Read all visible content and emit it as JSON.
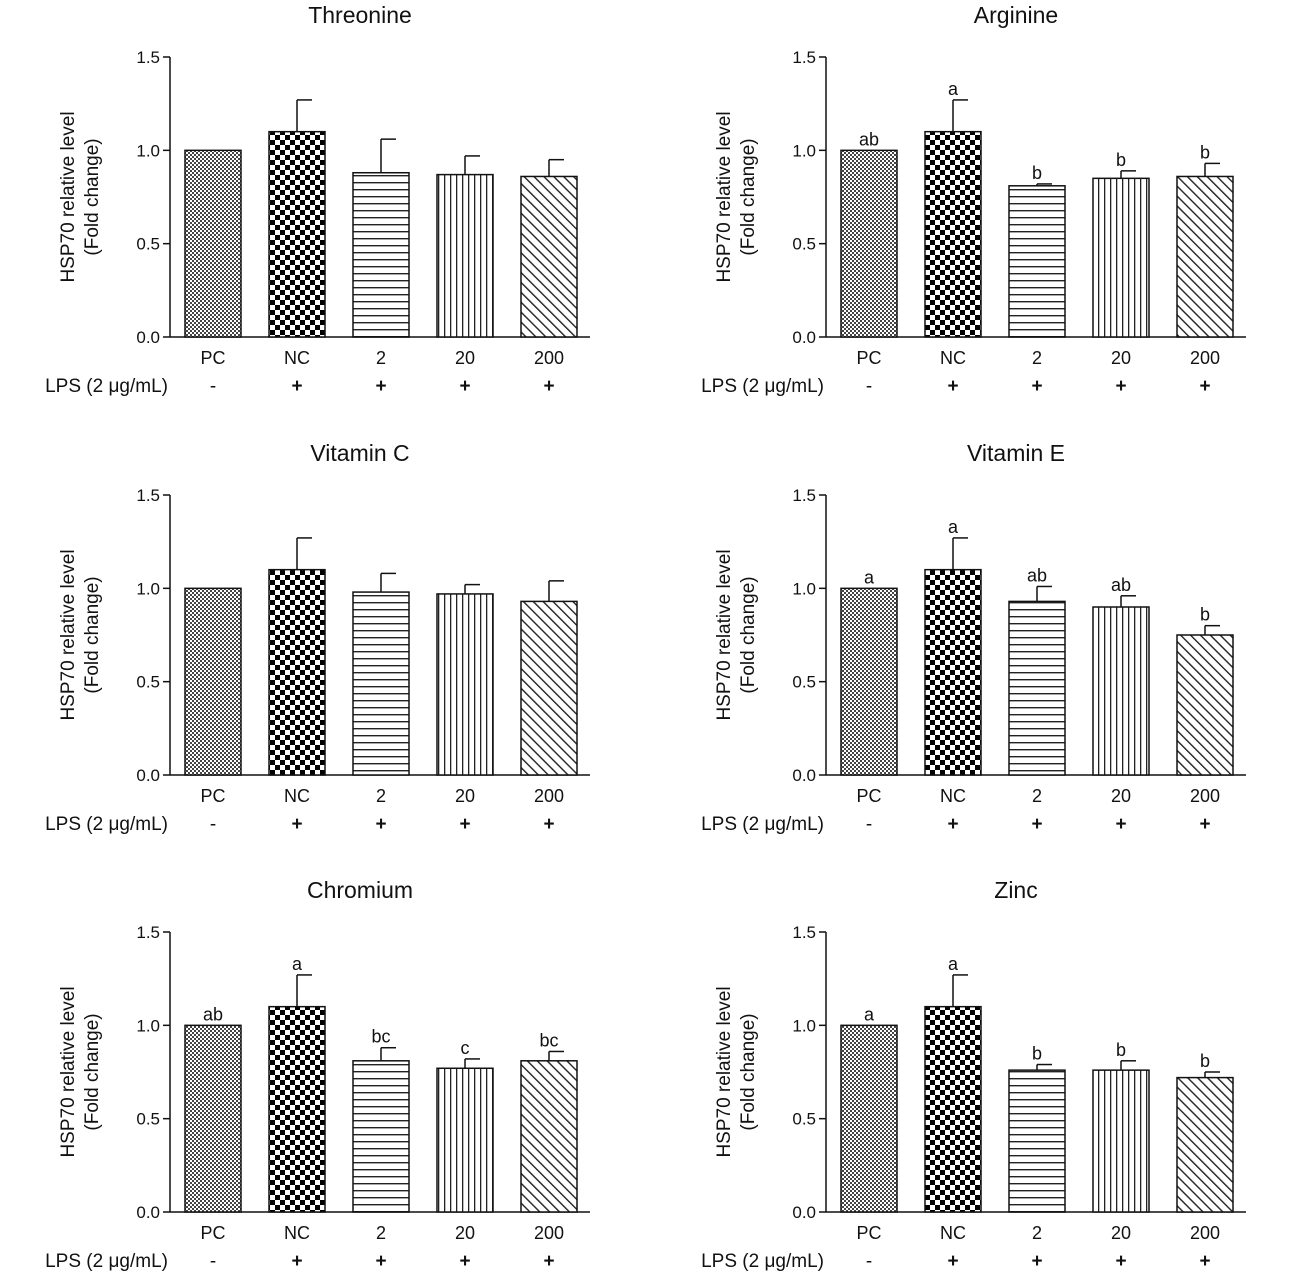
{
  "figure": {
    "categories": [
      "PC",
      "NC",
      "2",
      "20",
      "200"
    ],
    "lps_label": "LPS (2 μg/mL)",
    "lps_signs": [
      "-",
      "+",
      "+",
      "+",
      "+"
    ],
    "ylabel_line1": "HSP70 relative level",
    "ylabel_line2": "(Fold change)",
    "bar_patterns": [
      "fine-check",
      "coarse-check",
      "horizontal-lines",
      "vertical-lines",
      "diagonal-lines"
    ],
    "colors": {
      "ink": "#111111",
      "background": "#ffffff"
    }
  },
  "chart_data": [
    {
      "type": "bar",
      "title": "Threonine",
      "categories": [
        "PC",
        "NC",
        "2",
        "20",
        "200"
      ],
      "values": [
        1.0,
        1.1,
        0.88,
        0.87,
        0.86
      ],
      "errors": [
        0,
        0.17,
        0.18,
        0.1,
        0.09
      ],
      "letters": [
        "",
        "",
        "",
        "",
        ""
      ],
      "ylim": [
        0,
        1.5
      ],
      "yticks": [
        "0.0",
        "0.5",
        "1.0",
        "1.5"
      ],
      "ylabel": "HSP70 relative level (Fold change)",
      "grid": false,
      "legend": "none"
    },
    {
      "type": "bar",
      "title": "Arginine",
      "categories": [
        "PC",
        "NC",
        "2",
        "20",
        "200"
      ],
      "values": [
        1.0,
        1.1,
        0.81,
        0.85,
        0.86
      ],
      "errors": [
        0,
        0.17,
        0.01,
        0.04,
        0.07
      ],
      "letters": [
        "ab",
        "a",
        "b",
        "b",
        "b"
      ],
      "ylim": [
        0,
        1.5
      ],
      "yticks": [
        "0.0",
        "0.5",
        "1.0",
        "1.5"
      ],
      "ylabel": "HSP70 relative level (Fold change)",
      "grid": false,
      "legend": "none"
    },
    {
      "type": "bar",
      "title": "Vitamin C",
      "categories": [
        "PC",
        "NC",
        "2",
        "20",
        "200"
      ],
      "values": [
        1.0,
        1.1,
        0.98,
        0.97,
        0.93
      ],
      "errors": [
        0,
        0.17,
        0.1,
        0.05,
        0.11
      ],
      "letters": [
        "",
        "",
        "",
        "",
        ""
      ],
      "ylim": [
        0,
        1.5
      ],
      "yticks": [
        "0.0",
        "0.5",
        "1.0",
        "1.5"
      ],
      "ylabel": "HSP70 relative level (Fold change)",
      "grid": false,
      "legend": "none"
    },
    {
      "type": "bar",
      "title": "Vitamin E",
      "categories": [
        "PC",
        "NC",
        "2",
        "20",
        "200"
      ],
      "values": [
        1.0,
        1.1,
        0.93,
        0.9,
        0.75
      ],
      "errors": [
        0,
        0.17,
        0.08,
        0.06,
        0.05
      ],
      "letters": [
        "a",
        "a",
        "ab",
        "ab",
        "b"
      ],
      "ylim": [
        0,
        1.5
      ],
      "yticks": [
        "0.0",
        "0.5",
        "1.0",
        "1.5"
      ],
      "ylabel": "HSP70 relative level (Fold change)",
      "grid": false,
      "legend": "none"
    },
    {
      "type": "bar",
      "title": "Chromium",
      "categories": [
        "PC",
        "NC",
        "2",
        "20",
        "200"
      ],
      "values": [
        1.0,
        1.1,
        0.81,
        0.77,
        0.81
      ],
      "errors": [
        0,
        0.17,
        0.07,
        0.05,
        0.05
      ],
      "letters": [
        "ab",
        "a",
        "bc",
        "c",
        "bc"
      ],
      "ylim": [
        0,
        1.5
      ],
      "yticks": [
        "0.0",
        "0.5",
        "1.0",
        "1.5"
      ],
      "ylabel": "HSP70 relative level (Fold change)",
      "grid": false,
      "legend": "none"
    },
    {
      "type": "bar",
      "title": "Zinc",
      "categories": [
        "PC",
        "NC",
        "2",
        "20",
        "200"
      ],
      "values": [
        1.0,
        1.1,
        0.76,
        0.76,
        0.72
      ],
      "errors": [
        0,
        0.17,
        0.03,
        0.05,
        0.03
      ],
      "letters": [
        "a",
        "a",
        "b",
        "b",
        "b"
      ],
      "ylim": [
        0,
        1.5
      ],
      "yticks": [
        "0.0",
        "0.5",
        "1.0",
        "1.5"
      ],
      "ylabel": "HSP70 relative level (Fold change)",
      "grid": false,
      "legend": "none"
    }
  ]
}
